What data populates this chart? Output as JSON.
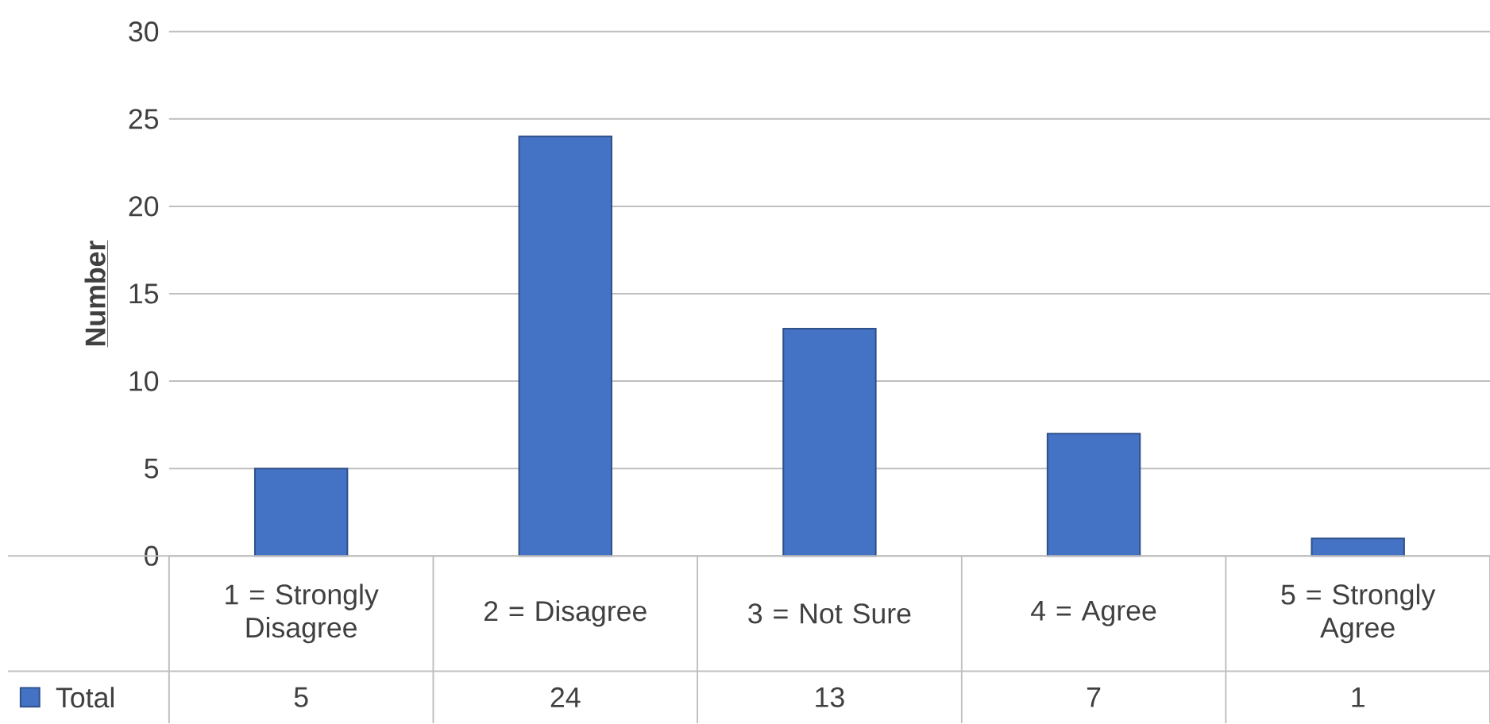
{
  "chart_data": {
    "type": "bar",
    "ylabel": "Number",
    "categories": [
      "1 = Strongly Disagree",
      "2 = Disagree",
      "3 = Not Sure",
      "4 = Agree",
      "5 = Strongly Agree"
    ],
    "series": [
      {
        "name": "Total",
        "color": "#4472c4",
        "values": [
          5,
          24,
          13,
          7,
          1
        ]
      }
    ],
    "ylim": [
      0,
      30
    ],
    "yticks": [
      0,
      5,
      10,
      15,
      20,
      25,
      30
    ],
    "grid": "y",
    "legend": "bottom left",
    "data_labels": true
  }
}
